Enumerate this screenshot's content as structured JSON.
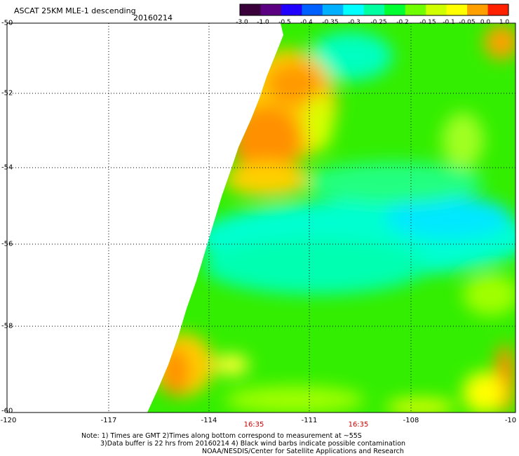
{
  "header": {
    "title": "ASCAT 25KM MLE-1 descending",
    "date": "20160214"
  },
  "colorbar": {
    "labels": [
      "-3.0",
      "-1.0",
      "-0.5",
      "-0.4",
      "-0.35",
      "-0.3",
      "-0.25",
      "-0.2",
      "-0.15",
      "-0.1",
      "-0.05",
      "0.0",
      "1.0"
    ],
    "colors": [
      "#3a003a",
      "#5a0080",
      "#2000ff",
      "#0060ff",
      "#00b0ff",
      "#00ffff",
      "#00ffa0",
      "#00ff30",
      "#70ff00",
      "#d0ff00",
      "#ffff00",
      "#ffa000",
      "#ff2000"
    ]
  },
  "axes": {
    "lon_labels": [
      "-120",
      "-117",
      "-114",
      "-111",
      "-108",
      "-10"
    ],
    "lat_labels": [
      "-50",
      "-52",
      "-54",
      "-56",
      "-58",
      "-60"
    ],
    "time_labels": [
      "16:35",
      "16:35"
    ]
  },
  "notes": [
    "Note: 1) Times are GMT 2)Times along bottom correspond to measurement at ~55S",
    "3)Data buffer is 22 hrs from 20160214 4) Black wind barbs indicate possible contamination",
    "NOAA/NESDIS/Center for Satellite Applications and Research"
  ]
}
